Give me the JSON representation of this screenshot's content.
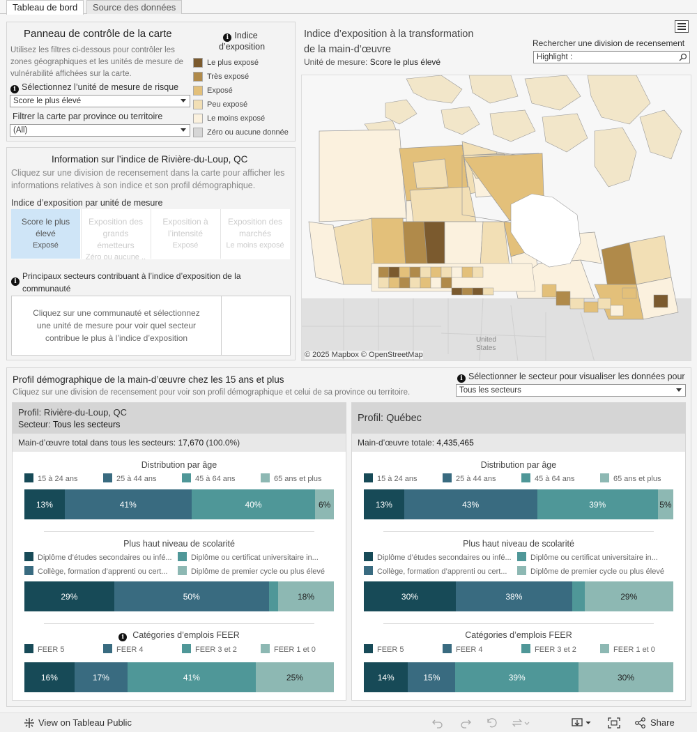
{
  "tabs": [
    "Tableau de bord",
    "Source des données"
  ],
  "control": {
    "title": "Panneau de contrôle de la carte",
    "desc1": "Utilisez les filtres ci-dessous pour contrôler les",
    "desc2": "zones géographiques et les unités de mesure de",
    "desc3": "vulnérabilité affichées sur la carte.",
    "risk_label": "Sélectionnez l’unité de mesure de risque",
    "risk_value": "Score le plus élevé",
    "prov_label": "Filtrer la carte par province ou territoire",
    "prov_value": "(All)",
    "legend_title1": "Indice",
    "legend_title2": "d’exposition",
    "legend": [
      {
        "label": "Le plus exposé",
        "color": "#7b5a2e"
      },
      {
        "label": "Très exposé",
        "color": "#b08a4a"
      },
      {
        "label": "Exposé",
        "color": "#e3c07a"
      },
      {
        "label": "Peu exposé",
        "color": "#f2dfb5"
      },
      {
        "label": "Le moins exposé",
        "color": "#fbf1de"
      },
      {
        "label": "Zéro ou aucune donnée",
        "color": "#d6d6d6"
      }
    ]
  },
  "info": {
    "title_pre": "Information sur l’indice de ",
    "title_place": "Rivière-du-Loup, QC",
    "desc1": "Cliquez sur une division de recensement dans la carte pour afficher les",
    "desc2": "informations relatives à son indice et son profil démographique.",
    "measure_title": "Indice d’exposition par unité de mesure",
    "measures": [
      {
        "l1": "Score le plus",
        "l2": "élevé",
        "l3": "",
        "v": "Exposé"
      },
      {
        "l1": "Exposition des",
        "l2": "grands",
        "l3": "émetteurs",
        "v": "Zéro ou aucune .."
      },
      {
        "l1": "Exposition à",
        "l2": "l’intensité",
        "l3": "",
        "v": "Exposé"
      },
      {
        "l1": "Exposition des",
        "l2": "marchés",
        "l3": "",
        "v": "Le moins exposé"
      }
    ],
    "sectors_title1": "Principaux secteurs contribuant à l’indice d’exposition de la",
    "sectors_title2": "communauté",
    "sectors_msg1": "Cliquez sur une communauté et sélectionnez",
    "sectors_msg2": "une unité de mesure pour voir quel secteur",
    "sectors_msg3": "contribue le plus à l’indice d’exposition"
  },
  "map": {
    "title1": "Indice d’exposition à la transformation",
    "title2": "de la main-d’œuvre",
    "unit_label": "Unité de mesure: ",
    "unit_value": "Score le plus élevé",
    "search_label": "Rechercher une division de recensement",
    "search_placeholder": "Highlight :",
    "us_label1": "United",
    "us_label2": "States",
    "attribution": "© 2025 Mapbox  © OpenStreetMap"
  },
  "demo": {
    "title": "Profil démographique de la main-d’œuvre chez les 15 ans et plus",
    "subtitle": "Cliquez sur une division de recensement pour voir son profil démographique et celui de sa province ou territoire.",
    "sector_label": "Sélectionner le secteur pour visualiser les données pour",
    "sector_value": "Tous les secteurs",
    "left": {
      "profile": "Profil: Rivière-du-Loup, QC",
      "sector_pre": "Secteur: ",
      "sector": "Tous les secteurs",
      "total_pre": "Main-d’œuvre total dans tous les secteurs: ",
      "total": "17,670",
      "total_pct": " (100.0%)"
    },
    "right": {
      "profile": "Profil: Québec",
      "total_pre": "Main-d’œuvre totale: ",
      "total": "4,435,465"
    },
    "age_title": "Distribution par âge",
    "age_legend": [
      "15 à 24 ans",
      "25 à 44 ans",
      "45 à 64 ans",
      "65 ans et plus"
    ],
    "edu_title": "Plus haut niveau de scolarité",
    "edu_legend": [
      "Diplôme d’études secondaires ou infé...",
      "Diplôme ou certificat universitaire in...",
      "Collège, formation d’apprenti ou cert...",
      "Diplôme de premier cycle ou plus élevé"
    ],
    "feer_title": "Catégories d’emplois FEER",
    "feer_legend": [
      "FEER 5",
      "FEER 4",
      "FEER 3 et 2",
      "FEER 1 et 0"
    ],
    "colors": [
      "#174a57",
      "#396b80",
      "#4f9798",
      "#8db8b3"
    ]
  },
  "chart_data": [
    {
      "type": "bar",
      "title": "Distribution par âge — Rivière-du-Loup, QC",
      "categories": [
        "15 à 24 ans",
        "25 à 44 ans",
        "45 à 64 ans",
        "65 ans et plus"
      ],
      "values": [
        13,
        41,
        40,
        6
      ],
      "labels": [
        "13%",
        "41%",
        "40%",
        "6%"
      ]
    },
    {
      "type": "bar",
      "title": "Plus haut niveau de scolarité — Rivière-du-Loup, QC",
      "categories": [
        "Diplôme d’études secondaires ou inférieur",
        "Collège, formation d’apprenti ou certificat",
        "Diplôme ou certificat universitaire inférieur",
        "Diplôme de premier cycle ou plus élevé"
      ],
      "values": [
        29,
        50,
        3,
        18
      ],
      "labels": [
        "29%",
        "50%",
        "",
        "18%"
      ]
    },
    {
      "type": "bar",
      "title": "Catégories d’emplois FEER — Rivière-du-Loup, QC",
      "categories": [
        "FEER 5",
        "FEER 4",
        "FEER 3 et 2",
        "FEER 1 et 0"
      ],
      "values": [
        16,
        17,
        41,
        25
      ],
      "labels": [
        "16%",
        "17%",
        "41%",
        "25%"
      ]
    },
    {
      "type": "bar",
      "title": "Distribution par âge — Québec",
      "categories": [
        "15 à 24 ans",
        "25 à 44 ans",
        "45 à 64 ans",
        "65 ans et plus"
      ],
      "values": [
        13,
        43,
        39,
        5
      ],
      "labels": [
        "13%",
        "43%",
        "39%",
        "5%"
      ]
    },
    {
      "type": "bar",
      "title": "Plus haut niveau de scolarité — Québec",
      "categories": [
        "Diplôme d’études secondaires ou inférieur",
        "Collège, formation d’apprenti ou certificat",
        "Diplôme ou certificat universitaire inférieur",
        "Diplôme de premier cycle ou plus élevé"
      ],
      "values": [
        30,
        38,
        4,
        29
      ],
      "labels": [
        "30%",
        "38%",
        "",
        "29%"
      ]
    },
    {
      "type": "bar",
      "title": "Catégories d’emplois FEER — Québec",
      "categories": [
        "FEER 5",
        "FEER 4",
        "FEER 3 et 2",
        "FEER 1 et 0"
      ],
      "values": [
        14,
        15,
        39,
        30
      ],
      "labels": [
        "14%",
        "15%",
        "39%",
        "30%"
      ]
    }
  ],
  "footer": {
    "view_label": "View on Tableau Public",
    "share_label": "Share"
  }
}
